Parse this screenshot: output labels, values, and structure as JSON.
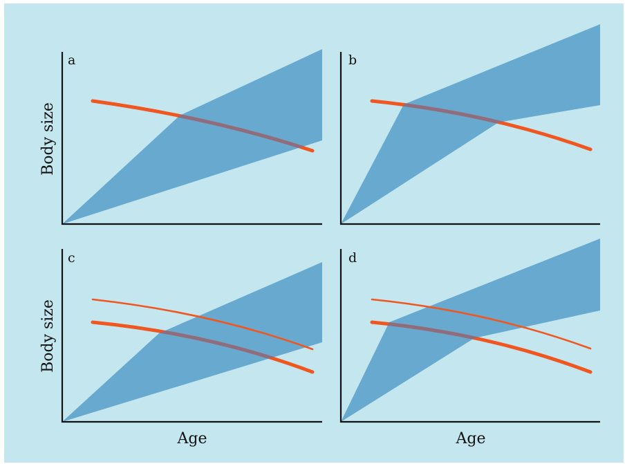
{
  "figure": {
    "background_color": "#c4e6ef",
    "band_color": "#68aacf",
    "curve_color": "#f0561f",
    "overlap_color": "#8e6d7e",
    "axis_color": "#111111"
  },
  "labels": {
    "y_axis_top": "Body size",
    "y_axis_bottom": "Body size",
    "x_axis_left": "Age",
    "x_axis_right": "Age"
  },
  "panels": [
    {
      "id": "a",
      "letter": "a",
      "extra_thin_curve": false
    },
    {
      "id": "b",
      "letter": "b",
      "extra_thin_curve": false
    },
    {
      "id": "c",
      "letter": "c",
      "extra_thin_curve": true
    },
    {
      "id": "d",
      "letter": "d",
      "extra_thin_curve": true
    }
  ]
}
